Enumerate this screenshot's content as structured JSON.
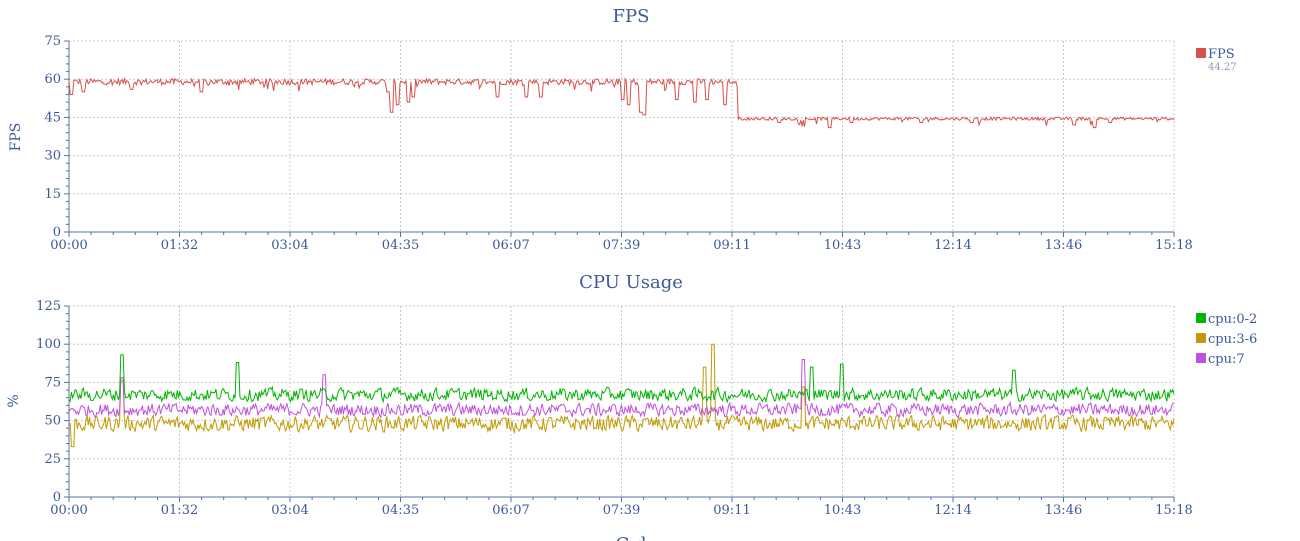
{
  "colors": {
    "axis": "#5470a0",
    "grid": "#c8c8c8",
    "fps": "#d7504b",
    "cpu_0_2": "#00b400",
    "cpu_3_6": "#c09a00",
    "cpu_7": "#c050e0",
    "text": "#3b5998"
  },
  "charts": [
    {
      "id": "fps",
      "title": "FPS",
      "ylabel": "FPS",
      "yticks": [
        "0",
        "15",
        "30",
        "45",
        "60",
        "75"
      ]
    },
    {
      "id": "cpu",
      "title": "CPU Usage",
      "ylabel": "%",
      "yticks": [
        "0",
        "25",
        "50",
        "75",
        "100",
        "125"
      ]
    }
  ],
  "xticks": [
    "00:00",
    "01:32",
    "03:04",
    "04:35",
    "06:07",
    "07:39",
    "09:11",
    "10:43",
    "12:14",
    "13:46",
    "15:18"
  ],
  "fps_legend": {
    "name": "FPS",
    "value": "44.27"
  },
  "cpu_legend": [
    {
      "name": "cpu:0-2"
    },
    {
      "name": "cpu:3-6"
    },
    {
      "name": "cpu:7"
    }
  ],
  "bottom_title_partial": "C   d",
  "chart_data": [
    {
      "type": "line",
      "title": "FPS",
      "xlabel": "",
      "ylabel": "FPS",
      "x_range_seconds": [
        0,
        918
      ],
      "ylim": [
        0,
        75
      ],
      "grid": true,
      "legend_position": "top-right",
      "series": [
        {
          "name": "FPS",
          "summary_value": 44.27,
          "segments": [
            {
              "t_start": 0,
              "t_end": 555,
              "base": 59,
              "noise": 1.2,
              "dips": [
                {
                  "t": 2,
                  "v": 54
                },
                {
                  "t": 12,
                  "v": 55
                },
                {
                  "t": 52,
                  "v": 56
                },
                {
                  "t": 110,
                  "v": 55
                },
                {
                  "t": 265,
                  "v": 55
                },
                {
                  "t": 268,
                  "v": 47
                },
                {
                  "t": 273,
                  "v": 50
                },
                {
                  "t": 282,
                  "v": 51
                },
                {
                  "t": 286,
                  "v": 53
                },
                {
                  "t": 356,
                  "v": 53
                },
                {
                  "t": 380,
                  "v": 53
                },
                {
                  "t": 392,
                  "v": 53
                },
                {
                  "t": 460,
                  "v": 52
                },
                {
                  "t": 465,
                  "v": 50
                },
                {
                  "t": 475,
                  "v": 47
                },
                {
                  "t": 478,
                  "v": 46
                },
                {
                  "t": 505,
                  "v": 52
                },
                {
                  "t": 520,
                  "v": 51
                },
                {
                  "t": 530,
                  "v": 52
                },
                {
                  "t": 545,
                  "v": 50
                }
              ]
            },
            {
              "t_start": 555,
              "t_end": 918,
              "base": 44.5,
              "noise": 0.6,
              "dips": [
                {
                  "t": 590,
                  "v": 43
                },
                {
                  "t": 632,
                  "v": 41
                },
                {
                  "t": 650,
                  "v": 43
                },
                {
                  "t": 708,
                  "v": 43
                },
                {
                  "t": 750,
                  "v": 43
                },
                {
                  "t": 835,
                  "v": 42
                },
                {
                  "t": 852,
                  "v": 41
                },
                {
                  "t": 865,
                  "v": 43
                }
              ]
            }
          ]
        }
      ]
    },
    {
      "type": "line",
      "title": "CPU Usage",
      "xlabel": "",
      "ylabel": "%",
      "x_range_seconds": [
        0,
        918
      ],
      "ylim": [
        0,
        125
      ],
      "grid": true,
      "legend_position": "top-right",
      "series": [
        {
          "name": "cpu:0-2",
          "base": 67,
          "noise": 5,
          "spikes": [
            {
              "t": 44,
              "v": 93
            },
            {
              "t": 140,
              "v": 88
            },
            {
              "t": 617,
              "v": 85
            },
            {
              "t": 642,
              "v": 87
            },
            {
              "t": 785,
              "v": 83
            }
          ]
        },
        {
          "name": "cpu:3-6",
          "base": 48,
          "noise": 6,
          "spikes": [
            {
              "t": 3,
              "v": 33
            },
            {
              "t": 44,
              "v": 76
            },
            {
              "t": 528,
              "v": 85
            },
            {
              "t": 535,
              "v": 100
            },
            {
              "t": 610,
              "v": 72
            }
          ]
        },
        {
          "name": "cpu:7",
          "base": 57,
          "noise": 5,
          "spikes": [
            {
              "t": 44,
              "v": 78
            },
            {
              "t": 212,
              "v": 80
            },
            {
              "t": 610,
              "v": 90
            }
          ]
        }
      ]
    }
  ]
}
